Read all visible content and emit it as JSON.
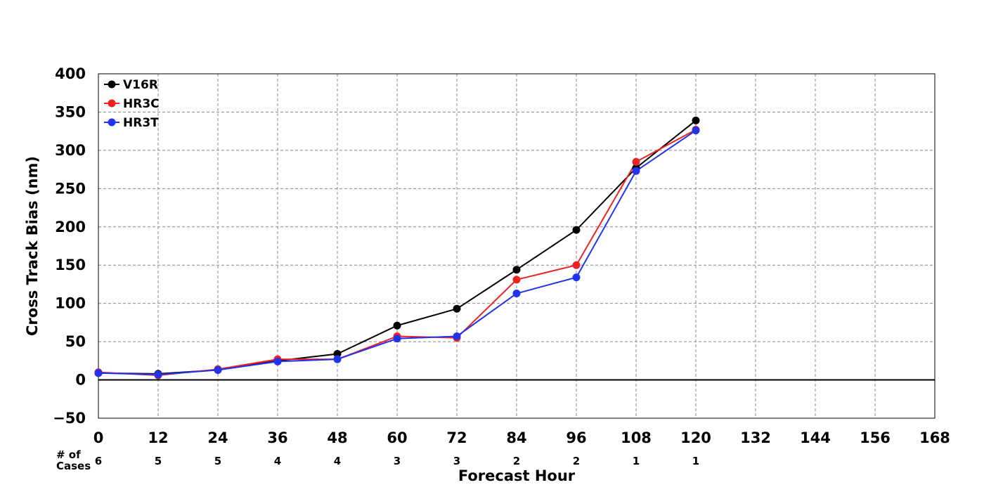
{
  "chart_data": {
    "type": "line",
    "xlabel": "Forecast Hour",
    "ylabel": "Cross Track Bias (nm)",
    "xlim": [
      0,
      168
    ],
    "ylim": [
      -50,
      400
    ],
    "x_ticks": [
      0,
      12,
      24,
      36,
      48,
      60,
      72,
      84,
      96,
      108,
      120,
      132,
      144,
      156,
      168
    ],
    "x_tick_labels": [
      "0",
      "12",
      "24",
      "36",
      "48",
      "60",
      "72",
      "84",
      "96",
      "108",
      "120",
      "132",
      "144",
      "156",
      "168"
    ],
    "y_ticks": [
      -50,
      0,
      50,
      100,
      150,
      200,
      250,
      300,
      350,
      400
    ],
    "y_tick_labels": [
      "−50",
      "0",
      "50",
      "100",
      "150",
      "200",
      "250",
      "300",
      "350",
      "400"
    ],
    "grid": true,
    "zero_line": true,
    "legend_position": "top-left",
    "x": [
      0,
      12,
      24,
      36,
      48,
      60,
      72,
      84,
      96,
      108,
      120
    ],
    "series": [
      {
        "name": "V16R",
        "color": "#000000",
        "values": [
          9,
          8,
          13,
          25,
          34,
          71,
          93,
          144,
          196,
          277,
          339
        ]
      },
      {
        "name": "HR3C",
        "color": "#ee2222",
        "values": [
          10,
          6,
          14,
          27,
          27,
          57,
          55,
          131,
          150,
          285,
          327
        ]
      },
      {
        "name": "HR3T",
        "color": "#2233ee",
        "values": [
          9,
          7,
          13,
          24,
          27,
          54,
          57,
          113,
          134,
          273,
          326
        ]
      }
    ],
    "cases": {
      "label_line1": "# of",
      "label_line2": "Cases",
      "x": [
        0,
        12,
        24,
        36,
        48,
        60,
        72,
        84,
        96,
        108,
        120
      ],
      "values": [
        "6",
        "5",
        "5",
        "4",
        "4",
        "3",
        "3",
        "2",
        "2",
        "1",
        "1"
      ]
    }
  }
}
